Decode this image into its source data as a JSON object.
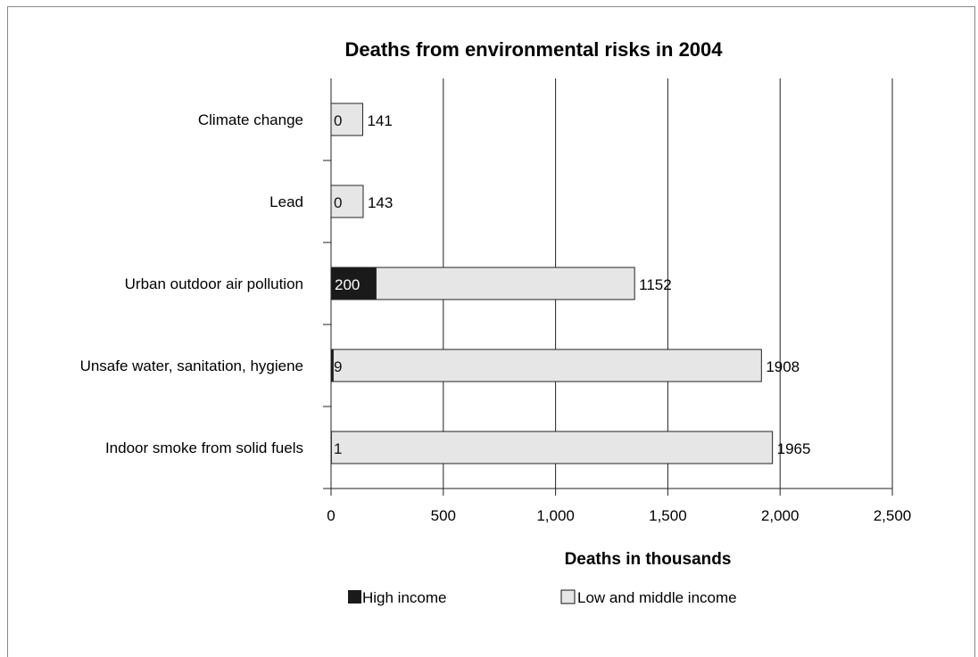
{
  "chart_data": {
    "type": "bar",
    "orientation": "horizontal",
    "stacked": true,
    "title": "Deaths from environmental risks in 2004",
    "xlabel": "Deaths in thousands",
    "ylabel": "",
    "xlim": [
      0,
      2500
    ],
    "xticks": [
      0,
      500,
      1000,
      1500,
      2000,
      2500
    ],
    "xtick_labels": [
      "0",
      "500",
      "1,000",
      "1,500",
      "2,000",
      "2,500"
    ],
    "grid": "vertical",
    "legend_position": "bottom",
    "categories": [
      "Climate change",
      "Lead",
      "Urban outdoor air pollution",
      "Unsafe water, sanitation, hygiene",
      "Indoor smoke from solid fuels"
    ],
    "series": [
      {
        "name": "High income",
        "color": "#1a1a1a",
        "values": [
          0,
          0,
          200,
          9,
          1
        ]
      },
      {
        "name": "Low and middle income",
        "color": "#e6e6e6",
        "values": [
          141,
          143,
          1152,
          1908,
          1965
        ]
      }
    ],
    "data_labels": {
      "High income": [
        "0",
        "0",
        "200",
        "9",
        "1"
      ],
      "Low and middle income": [
        "141",
        "143",
        "1152",
        "1908",
        "1965"
      ]
    }
  }
}
